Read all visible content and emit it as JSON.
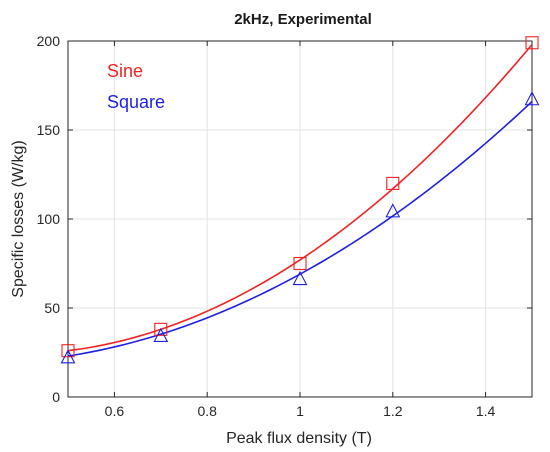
{
  "chart_data": {
    "type": "line",
    "title": "2kHz, Experimental",
    "xlabel": "Peak flux density (T)",
    "ylabel": "Specific losses (W/kg)",
    "xlim": [
      0.5,
      1.5
    ],
    "ylim": [
      0,
      200
    ],
    "xticks": [
      0.6,
      0.8,
      1.0,
      1.2,
      1.4
    ],
    "xtick_labels": [
      "0.6",
      "0.8",
      "1",
      "1.2",
      "1.4"
    ],
    "yticks": [
      0,
      50,
      100,
      150,
      200
    ],
    "ytick_labels": [
      "0",
      "50",
      "100",
      "150",
      "200"
    ],
    "grid": true,
    "legend_position": "top-left",
    "series": [
      {
        "name": "Sine",
        "color": "#ee2222",
        "marker": "square",
        "points": [
          {
            "x": 0.5,
            "y": 26
          },
          {
            "x": 0.7,
            "y": 38
          },
          {
            "x": 1.0,
            "y": 75
          },
          {
            "x": 1.2,
            "y": 120
          },
          {
            "x": 1.5,
            "y": 199
          }
        ],
        "fit": [
          0.5,
          1.0,
          1.5,
          26,
          77,
          198
        ]
      },
      {
        "name": "Square",
        "color": "#1f1fe0",
        "marker": "triangle",
        "points": [
          {
            "x": 0.5,
            "y": 22
          },
          {
            "x": 0.7,
            "y": 34
          },
          {
            "x": 1.0,
            "y": 66
          },
          {
            "x": 1.2,
            "y": 104
          },
          {
            "x": 1.5,
            "y": 167
          }
        ],
        "fit": [
          0.5,
          1.0,
          1.5,
          23,
          69,
          166
        ]
      }
    ]
  }
}
